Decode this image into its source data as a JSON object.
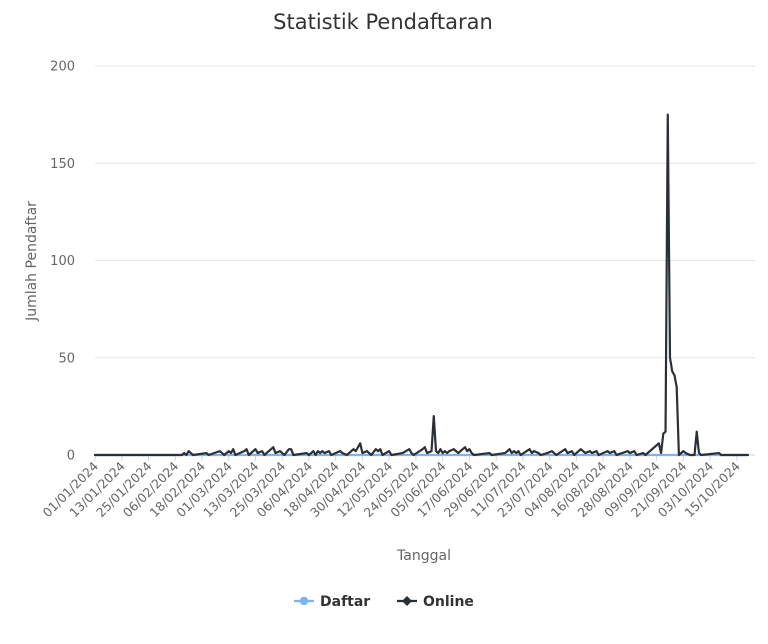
{
  "chart_data": {
    "type": "line",
    "title": "Statistik Pendaftaran",
    "xlabel": "Tanggal",
    "ylabel": "Jumlah Pendaftar",
    "ylim": [
      0,
      200
    ],
    "yticks": [
      0,
      50,
      100,
      150,
      200
    ],
    "grid": true,
    "legend_position": "bottom",
    "xlim": [
      "2024-01-01",
      "2024-10-20"
    ],
    "x_tick_labels": [
      "01/01/2024",
      "13/01/2024",
      "25/01/2024",
      "06/02/2024",
      "18/02/2024",
      "01/03/2024",
      "13/03/2024",
      "25/03/2024",
      "06/04/2024",
      "18/04/2024",
      "30/04/2024",
      "12/05/2024",
      "24/05/2024",
      "05/06/2024",
      "17/06/2024",
      "29/06/2024",
      "11/07/2024",
      "23/07/2024",
      "04/08/2024",
      "16/08/2024",
      "28/08/2024",
      "09/09/2024",
      "21/09/2024",
      "03/10/2024",
      "15/10/2024"
    ],
    "series": [
      {
        "name": "Daftar",
        "color": "#7cb5ec",
        "points": [
          {
            "x": "2024-01-01",
            "y": 0
          },
          {
            "x": "2024-10-20",
            "y": 0
          }
        ]
      },
      {
        "name": "Online",
        "color": "#2b2f36",
        "points": [
          {
            "x": "2024-01-01",
            "y": 0
          },
          {
            "x": "2024-02-09",
            "y": 0
          },
          {
            "x": "2024-02-10",
            "y": 1
          },
          {
            "x": "2024-02-11",
            "y": 0
          },
          {
            "x": "2024-02-12",
            "y": 2
          },
          {
            "x": "2024-02-13",
            "y": 1
          },
          {
            "x": "2024-02-14",
            "y": 0
          },
          {
            "x": "2024-02-20",
            "y": 1
          },
          {
            "x": "2024-02-21",
            "y": 0
          },
          {
            "x": "2024-02-26",
            "y": 2
          },
          {
            "x": "2024-02-27",
            "y": 1
          },
          {
            "x": "2024-02-28",
            "y": 0
          },
          {
            "x": "2024-03-01",
            "y": 2
          },
          {
            "x": "2024-03-02",
            "y": 1
          },
          {
            "x": "2024-03-03",
            "y": 3
          },
          {
            "x": "2024-03-04",
            "y": 0
          },
          {
            "x": "2024-03-08",
            "y": 2
          },
          {
            "x": "2024-03-09",
            "y": 3
          },
          {
            "x": "2024-03-10",
            "y": 0
          },
          {
            "x": "2024-03-12",
            "y": 2
          },
          {
            "x": "2024-03-13",
            "y": 3
          },
          {
            "x": "2024-03-14",
            "y": 1
          },
          {
            "x": "2024-03-16",
            "y": 2
          },
          {
            "x": "2024-03-17",
            "y": 0
          },
          {
            "x": "2024-03-21",
            "y": 4
          },
          {
            "x": "2024-03-22",
            "y": 1
          },
          {
            "x": "2024-03-24",
            "y": 2
          },
          {
            "x": "2024-03-26",
            "y": 0
          },
          {
            "x": "2024-03-28",
            "y": 3
          },
          {
            "x": "2024-03-29",
            "y": 3
          },
          {
            "x": "2024-03-30",
            "y": 0
          },
          {
            "x": "2024-04-05",
            "y": 1
          },
          {
            "x": "2024-04-06",
            "y": 0
          },
          {
            "x": "2024-04-08",
            "y": 2
          },
          {
            "x": "2024-04-09",
            "y": 0
          },
          {
            "x": "2024-04-10",
            "y": 2
          },
          {
            "x": "2024-04-11",
            "y": 1
          },
          {
            "x": "2024-04-12",
            "y": 2
          },
          {
            "x": "2024-04-13",
            "y": 1
          },
          {
            "x": "2024-04-15",
            "y": 2
          },
          {
            "x": "2024-04-16",
            "y": 0
          },
          {
            "x": "2024-04-20",
            "y": 2
          },
          {
            "x": "2024-04-21",
            "y": 1
          },
          {
            "x": "2024-04-23",
            "y": 0
          },
          {
            "x": "2024-04-26",
            "y": 3
          },
          {
            "x": "2024-04-27",
            "y": 2
          },
          {
            "x": "2024-04-29",
            "y": 6
          },
          {
            "x": "2024-04-30",
            "y": 1
          },
          {
            "x": "2024-05-02",
            "y": 2
          },
          {
            "x": "2024-05-04",
            "y": 0
          },
          {
            "x": "2024-05-06",
            "y": 3
          },
          {
            "x": "2024-05-07",
            "y": 2
          },
          {
            "x": "2024-05-08",
            "y": 3
          },
          {
            "x": "2024-05-09",
            "y": 0
          },
          {
            "x": "2024-05-12",
            "y": 2
          },
          {
            "x": "2024-05-13",
            "y": 0
          },
          {
            "x": "2024-05-18",
            "y": 1
          },
          {
            "x": "2024-05-21",
            "y": 3
          },
          {
            "x": "2024-05-22",
            "y": 1
          },
          {
            "x": "2024-05-23",
            "y": 0
          },
          {
            "x": "2024-05-27",
            "y": 3
          },
          {
            "x": "2024-05-28",
            "y": 4
          },
          {
            "x": "2024-05-29",
            "y": 1
          },
          {
            "x": "2024-05-31",
            "y": 2
          },
          {
            "x": "2024-06-01",
            "y": 20
          },
          {
            "x": "2024-06-02",
            "y": 2
          },
          {
            "x": "2024-06-03",
            "y": 1
          },
          {
            "x": "2024-06-04",
            "y": 3
          },
          {
            "x": "2024-06-05",
            "y": 1
          },
          {
            "x": "2024-06-06",
            "y": 2
          },
          {
            "x": "2024-06-07",
            "y": 1
          },
          {
            "x": "2024-06-08",
            "y": 2
          },
          {
            "x": "2024-06-10",
            "y": 3
          },
          {
            "x": "2024-06-11",
            "y": 2
          },
          {
            "x": "2024-06-12",
            "y": 1
          },
          {
            "x": "2024-06-13",
            "y": 2
          },
          {
            "x": "2024-06-14",
            "y": 3
          },
          {
            "x": "2024-06-15",
            "y": 4
          },
          {
            "x": "2024-06-16",
            "y": 2
          },
          {
            "x": "2024-06-17",
            "y": 3
          },
          {
            "x": "2024-06-18",
            "y": 1
          },
          {
            "x": "2024-06-19",
            "y": 0
          },
          {
            "x": "2024-06-26",
            "y": 1
          },
          {
            "x": "2024-06-27",
            "y": 0
          },
          {
            "x": "2024-07-03",
            "y": 1
          },
          {
            "x": "2024-07-05",
            "y": 3
          },
          {
            "x": "2024-07-06",
            "y": 1
          },
          {
            "x": "2024-07-07",
            "y": 2
          },
          {
            "x": "2024-07-08",
            "y": 1
          },
          {
            "x": "2024-07-09",
            "y": 2
          },
          {
            "x": "2024-07-10",
            "y": 0
          },
          {
            "x": "2024-07-14",
            "y": 3
          },
          {
            "x": "2024-07-15",
            "y": 1
          },
          {
            "x": "2024-07-16",
            "y": 2
          },
          {
            "x": "2024-07-18",
            "y": 1
          },
          {
            "x": "2024-07-19",
            "y": 0
          },
          {
            "x": "2024-07-22",
            "y": 1
          },
          {
            "x": "2024-07-24",
            "y": 2
          },
          {
            "x": "2024-07-25",
            "y": 1
          },
          {
            "x": "2024-07-26",
            "y": 0
          },
          {
            "x": "2024-07-30",
            "y": 3
          },
          {
            "x": "2024-07-31",
            "y": 1
          },
          {
            "x": "2024-08-02",
            "y": 2
          },
          {
            "x": "2024-08-03",
            "y": 0
          },
          {
            "x": "2024-08-06",
            "y": 3
          },
          {
            "x": "2024-08-07",
            "y": 2
          },
          {
            "x": "2024-08-08",
            "y": 1
          },
          {
            "x": "2024-08-10",
            "y": 2
          },
          {
            "x": "2024-08-11",
            "y": 1
          },
          {
            "x": "2024-08-13",
            "y": 2
          },
          {
            "x": "2024-08-14",
            "y": 0
          },
          {
            "x": "2024-08-18",
            "y": 2
          },
          {
            "x": "2024-08-19",
            "y": 1
          },
          {
            "x": "2024-08-21",
            "y": 2
          },
          {
            "x": "2024-08-22",
            "y": 0
          },
          {
            "x": "2024-08-27",
            "y": 2
          },
          {
            "x": "2024-08-28",
            "y": 1
          },
          {
            "x": "2024-08-30",
            "y": 2
          },
          {
            "x": "2024-08-31",
            "y": 0
          },
          {
            "x": "2024-09-03",
            "y": 1
          },
          {
            "x": "2024-09-04",
            "y": 0
          },
          {
            "x": "2024-09-10",
            "y": 6
          },
          {
            "x": "2024-09-11",
            "y": 1
          },
          {
            "x": "2024-09-12",
            "y": 11
          },
          {
            "x": "2024-09-13",
            "y": 12
          },
          {
            "x": "2024-09-14",
            "y": 175
          },
          {
            "x": "2024-09-15",
            "y": 50
          },
          {
            "x": "2024-09-16",
            "y": 43
          },
          {
            "x": "2024-09-17",
            "y": 41
          },
          {
            "x": "2024-09-18",
            "y": 35
          },
          {
            "x": "2024-09-19",
            "y": 0
          },
          {
            "x": "2024-09-21",
            "y": 2
          },
          {
            "x": "2024-09-22",
            "y": 1
          },
          {
            "x": "2024-09-24",
            "y": 0
          },
          {
            "x": "2024-09-26",
            "y": 0
          },
          {
            "x": "2024-09-27",
            "y": 12
          },
          {
            "x": "2024-09-28",
            "y": 1
          },
          {
            "x": "2024-09-29",
            "y": 0
          },
          {
            "x": "2024-10-07",
            "y": 1
          },
          {
            "x": "2024-10-08",
            "y": 0
          },
          {
            "x": "2024-10-20",
            "y": 0
          }
        ]
      }
    ]
  }
}
